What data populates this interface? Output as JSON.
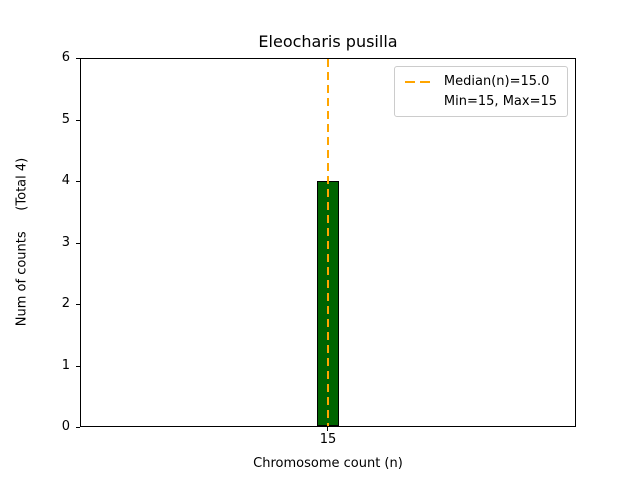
{
  "figure": {
    "background": "#ffffff"
  },
  "chart_data": {
    "type": "bar",
    "title": "Eleocharis pusilla",
    "xlabel": "Chromosome count (n)",
    "ylabel": "Num of counts     (Total 4)",
    "total_counts": 4,
    "categories": [
      "15"
    ],
    "values": [
      4
    ],
    "ylim": [
      0,
      6
    ],
    "yticks": [
      0,
      1,
      2,
      3,
      4,
      5,
      6
    ],
    "bar_color": "#006400",
    "bar_edge_color": "#000000",
    "median": {
      "value": 15.0,
      "line_color": "#FFA500",
      "line_style": "dashed"
    },
    "min": 15,
    "max": 15,
    "grid": false,
    "legend": {
      "position": "upper right",
      "entries": [
        {
          "label": "Median(n)=15.0",
          "handle": "dashed-line",
          "color": "#FFA500"
        },
        {
          "label": "Min=15, Max=15",
          "handle": "none"
        }
      ]
    }
  }
}
